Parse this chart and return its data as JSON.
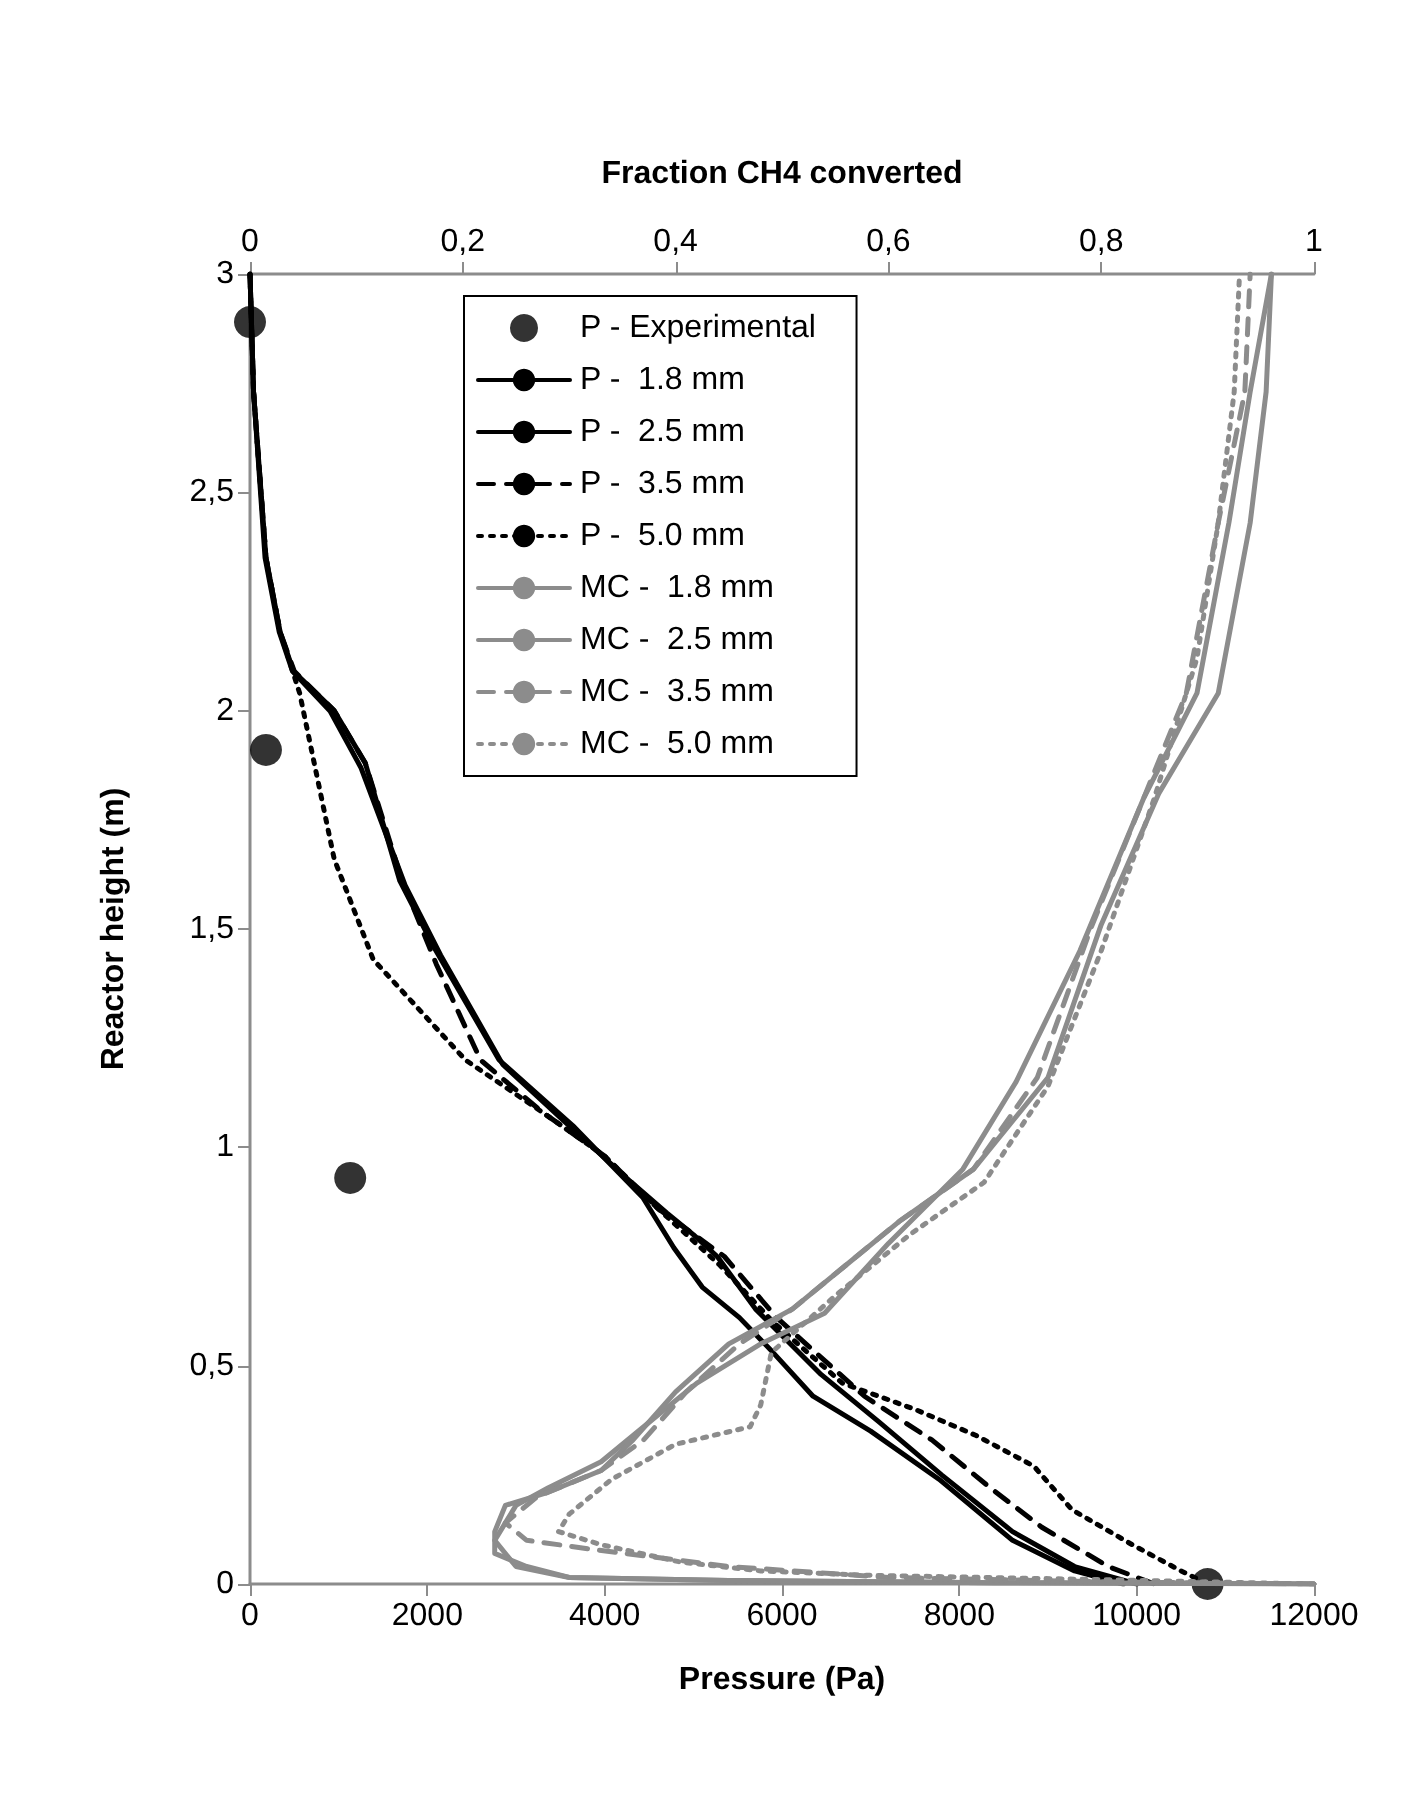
{
  "chart_data": {
    "type": "line",
    "xlabel": "Pressure (Pa)",
    "x2label": "Fraction CH4 converted",
    "ylabel": "Reactor height (m)",
    "xlim": [
      0,
      12000
    ],
    "xticks": [
      0,
      2000,
      4000,
      6000,
      8000,
      10000,
      12000
    ],
    "x2lim": [
      0,
      1
    ],
    "x2ticks": [
      0,
      {
        "value": 0.2,
        "label": "0,2"
      },
      {
        "value": 0.4,
        "label": "0,4"
      },
      {
        "value": 0.6,
        "label": "0,6"
      },
      {
        "value": 0.8,
        "label": "0,8"
      },
      1
    ],
    "ylim": [
      0,
      3
    ],
    "yticks": [
      0,
      {
        "value": 0.5,
        "label": "0,5"
      },
      1,
      {
        "value": 1.5,
        "label": "1,5"
      },
      2,
      {
        "value": 2.5,
        "label": "2,5"
      },
      3
    ],
    "grid": false,
    "legend": "top",
    "marker": "none",
    "series": [
      {
        "name": "P - Experimental",
        "type": "scatter",
        "marker": "circle",
        "color": "#000000",
        "x": [
          0,
          180,
          1130,
          10800
        ],
        "values": [
          2.89,
          1.91,
          0.93,
          0
        ]
      },
      {
        "name": "P -  1.8 mm",
        "color": "#000000",
        "line_style": "solid",
        "x": [
          0,
          40,
          170,
          330,
          480,
          900,
          1250,
          1750,
          2150,
          2850,
          3650,
          4300,
          4700,
          5000,
          5270,
          5700,
          6440,
          7100,
          7800,
          8600,
          9300,
          10000
        ],
        "values": [
          3,
          2.73,
          2.35,
          2.18,
          2.09,
          2.0,
          1.87,
          1.6,
          1.44,
          1.19,
          1.04,
          0.92,
          0.85,
          0.8,
          0.75,
          0.63,
          0.48,
          0.37,
          0.25,
          0.12,
          0.04,
          0
        ]
      },
      {
        "name": "P -  2.5 mm",
        "color": "#000000",
        "line_style": "solid",
        "x": [
          0,
          40,
          180,
          340,
          490,
          950,
          1300,
          1690,
          2070,
          2810,
          3640,
          4430,
          4780,
          5100,
          5520,
          5900,
          6350,
          7000,
          7770,
          8600,
          9300,
          9850
        ],
        "values": [
          3,
          2.73,
          2.35,
          2.18,
          2.09,
          2.0,
          1.88,
          1.61,
          1.46,
          1.2,
          1.05,
          0.885,
          0.77,
          0.68,
          0.61,
          0.53,
          0.43,
          0.35,
          0.24,
          0.1,
          0.03,
          0
        ]
      },
      {
        "name": "P -  3.5 mm",
        "color": "#000000",
        "line_style": "dashed",
        "x": [
          0,
          40,
          180,
          340,
          500,
          950,
          1300,
          1700,
          2100,
          2600,
          3300,
          4000,
          4600,
          5350,
          5940,
          6930,
          7690,
          8350,
          8930,
          9680,
          10200
        ],
        "values": [
          3,
          2.73,
          2.35,
          2.18,
          2.09,
          2.0,
          1.88,
          1.62,
          1.42,
          1.2,
          1.08,
          0.98,
          0.86,
          0.75,
          0.61,
          0.43,
          0.33,
          0.22,
          0.13,
          0.04,
          0
        ]
      },
      {
        "name": "P -  5.0 mm",
        "color": "#000000",
        "line_style": "dotted",
        "x": [
          0,
          40,
          180,
          340,
          560,
          950,
          1390,
          2430,
          3300,
          4000,
          4600,
          5300,
          5900,
          6680,
          7500,
          8190,
          8840,
          9270,
          9950,
          10500,
          10800
        ],
        "values": [
          3,
          2.73,
          2.35,
          2.18,
          2.04,
          1.66,
          1.43,
          1.2,
          1.08,
          0.98,
          0.86,
          0.73,
          0.6,
          0.46,
          0.4,
          0.34,
          0.27,
          0.17,
          0.09,
          0.03,
          0
        ]
      },
      {
        "name": "MC -  1.8 mm",
        "color": "#8c8c8c",
        "axis": "x2",
        "line_style": "solid",
        "x": [
          1.0,
          0.7,
          0.45,
          0.3,
          0.25,
          0.23,
          0.24,
          0.25,
          0.28,
          0.33,
          0.37,
          0.42,
          0.48,
          0.54,
          0.6,
          0.67,
          0.72,
          0.78,
          0.84,
          0.89,
          0.92,
          0.94,
          0.96
        ],
        "values": [
          0,
          0.003,
          0.008,
          0.015,
          0.04,
          0.1,
          0.14,
          0.18,
          0.22,
          0.28,
          0.36,
          0.46,
          0.55,
          0.62,
          0.78,
          0.95,
          1.15,
          1.45,
          1.8,
          2.04,
          2.43,
          2.73,
          3
        ]
      },
      {
        "name": "MC -  2.5 mm",
        "color": "#8c8c8c",
        "axis": "x2",
        "line_style": "solid",
        "x": [
          1.0,
          0.7,
          0.45,
          0.3,
          0.26,
          0.23,
          0.23,
          0.24,
          0.28,
          0.33,
          0.36,
          0.4,
          0.45,
          0.51,
          0.56,
          0.61,
          0.68,
          0.75,
          0.8,
          0.854,
          0.91,
          0.94,
          0.955,
          0.96
        ],
        "values": [
          0,
          0.003,
          0.008,
          0.015,
          0.04,
          0.07,
          0.12,
          0.18,
          0.21,
          0.26,
          0.33,
          0.44,
          0.55,
          0.63,
          0.73,
          0.83,
          0.95,
          1.16,
          1.51,
          1.81,
          2.04,
          2.43,
          2.73,
          3
        ]
      },
      {
        "name": "MC -  3.5 mm",
        "color": "#8c8c8c",
        "axis": "x2",
        "line_style": "dashed",
        "x": [
          1.0,
          0.8,
          0.6,
          0.45,
          0.385,
          0.32,
          0.26,
          0.24,
          0.27,
          0.33,
          0.37,
          0.41,
          0.46,
          0.51,
          0.56,
          0.61,
          0.68,
          0.74,
          0.79,
          0.84,
          0.88,
          0.91,
          0.935,
          0.94
        ],
        "values": [
          0,
          0.005,
          0.015,
          0.04,
          0.06,
          0.08,
          0.1,
          0.14,
          0.2,
          0.26,
          0.33,
          0.44,
          0.55,
          0.63,
          0.73,
          0.83,
          0.95,
          1.16,
          1.5,
          1.8,
          2.04,
          2.43,
          2.73,
          3
        ]
      },
      {
        "name": "MC -  5.0 mm",
        "color": "#8c8c8c",
        "axis": "x2",
        "line_style": "dotted",
        "x": [
          1.0,
          0.8,
          0.58,
          0.48,
          0.405,
          0.33,
          0.29,
          0.3,
          0.34,
          0.4,
          0.47,
          0.48,
          0.49,
          0.55,
          0.62,
          0.69,
          0.75,
          0.8,
          0.85,
          0.89,
          0.91,
          0.925,
          0.93
        ],
        "values": [
          0,
          0.01,
          0.02,
          0.03,
          0.05,
          0.09,
          0.12,
          0.16,
          0.24,
          0.32,
          0.36,
          0.41,
          0.53,
          0.66,
          0.8,
          0.92,
          1.14,
          1.45,
          1.8,
          2.12,
          2.43,
          2.73,
          3
        ]
      }
    ]
  }
}
